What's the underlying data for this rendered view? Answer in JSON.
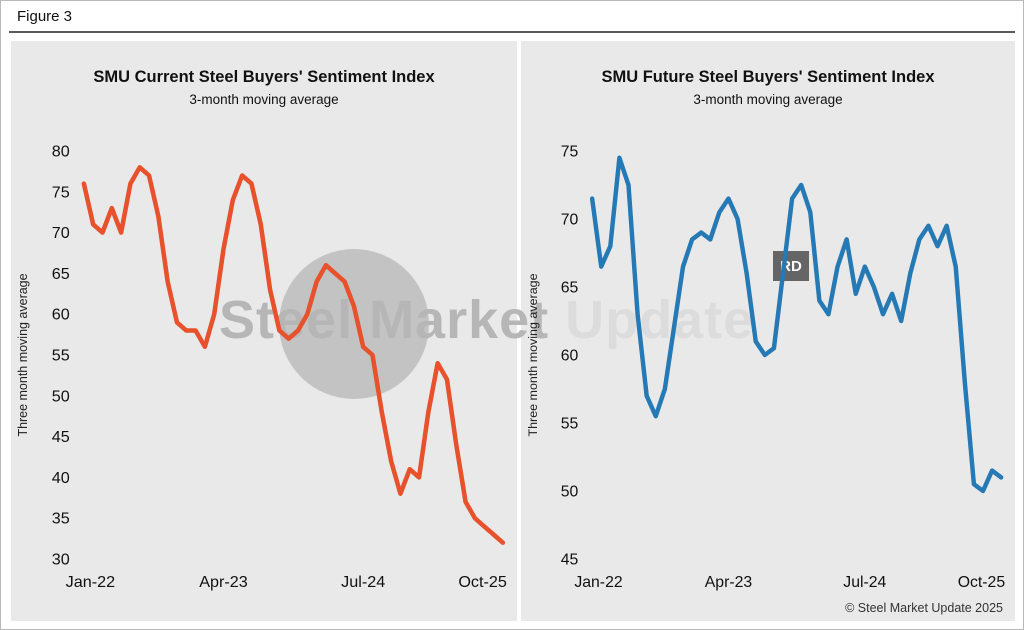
{
  "page": {
    "figure_label": "Figure 3",
    "copyright": "© Steel Market Update 2025",
    "watermark": {
      "text_primary": "Steel Market",
      "text_secondary": "Update",
      "badge": "RD"
    }
  },
  "chart_data": [
    {
      "type": "line",
      "title": "SMU Current Steel Buyers' Sentiment Index",
      "subtitle": "3-month moving average",
      "ylabel": "Three month moving average",
      "color": "#E7512C",
      "ylim": [
        30,
        80
      ],
      "yticks": [
        30,
        35,
        40,
        45,
        50,
        55,
        60,
        65,
        70,
        75,
        80
      ],
      "xticks": [
        {
          "label": "Jan-22",
          "month": 0
        },
        {
          "label": "Apr-23",
          "month": 15
        },
        {
          "label": "Jul-24",
          "month": 30
        },
        {
          "label": "Oct-25",
          "month": 45
        }
      ],
      "x_start": "Jan-22",
      "x_end": "Oct-25",
      "x_unit": "month",
      "values": [
        76,
        71,
        70,
        73,
        70,
        76,
        78,
        77,
        72,
        64,
        59,
        58,
        58,
        56,
        60,
        68,
        74,
        77,
        76,
        71,
        63,
        58,
        57,
        58,
        60,
        64,
        66,
        65,
        64,
        61,
        56,
        55,
        48,
        42,
        38,
        41,
        40,
        48,
        54,
        52,
        44,
        37,
        35,
        34,
        33,
        32
      ]
    },
    {
      "type": "line",
      "title": "SMU Future Steel Buyers' Sentiment Index",
      "subtitle": "3-month moving average",
      "ylabel": "Three month moving average",
      "color": "#2579B5",
      "ylim": [
        45,
        75
      ],
      "yticks": [
        45,
        50,
        55,
        60,
        65,
        70,
        75
      ],
      "xticks": [
        {
          "label": "Jan-22",
          "month": 0
        },
        {
          "label": "Apr-23",
          "month": 15
        },
        {
          "label": "Jul-24",
          "month": 30
        },
        {
          "label": "Oct-25",
          "month": 45
        }
      ],
      "x_start": "Jan-22",
      "x_end": "Oct-25",
      "x_unit": "month",
      "values": [
        71.5,
        66.5,
        68,
        74.5,
        72.5,
        63,
        57,
        55.5,
        57.5,
        62,
        66.5,
        68.5,
        69,
        68.5,
        70.5,
        71.5,
        70,
        66,
        61,
        60,
        60.5,
        66,
        71.5,
        72.5,
        70.5,
        64,
        63,
        66.5,
        68.5,
        64.5,
        66.5,
        65,
        63,
        64.5,
        62.5,
        66,
        68.5,
        69.5,
        68,
        69.5,
        66.5,
        58,
        50.5,
        50,
        51.5,
        51
      ]
    }
  ]
}
